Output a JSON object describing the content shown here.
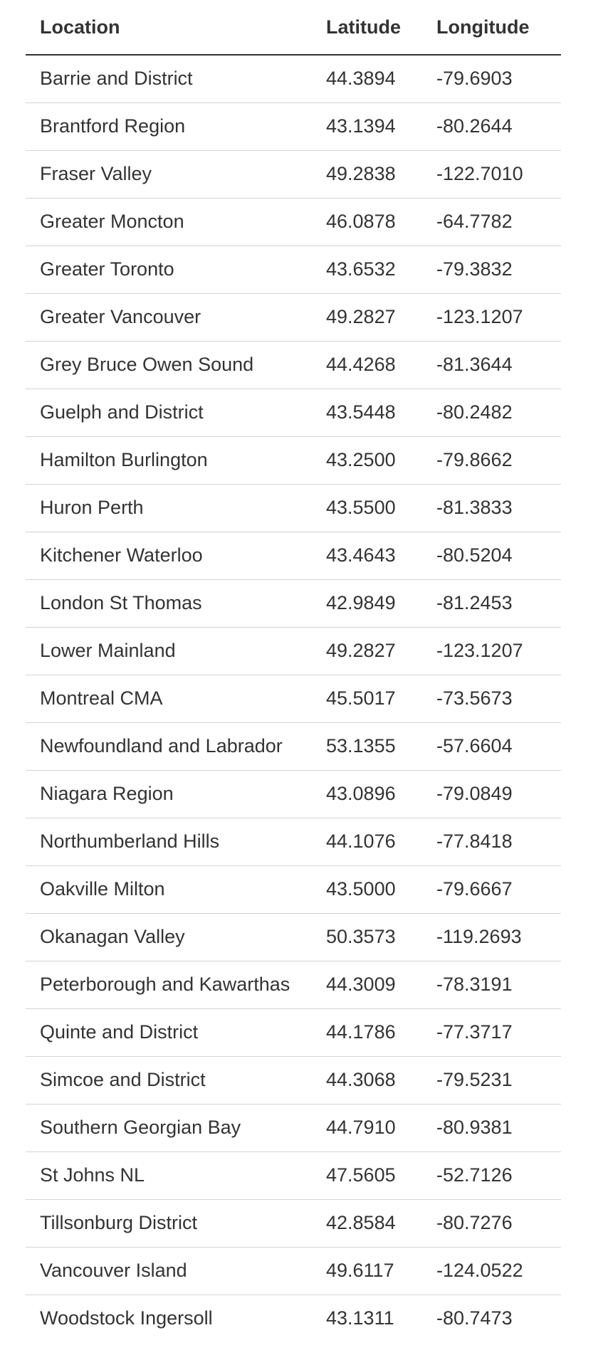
{
  "table": {
    "headers": {
      "location": "Location",
      "latitude": "Latitude",
      "longitude": "Longitude"
    },
    "rows": [
      {
        "location": "Barrie and District",
        "latitude": "44.3894",
        "longitude": "-79.6903"
      },
      {
        "location": "Brantford Region",
        "latitude": "43.1394",
        "longitude": "-80.2644"
      },
      {
        "location": "Fraser Valley",
        "latitude": "49.2838",
        "longitude": "-122.7010"
      },
      {
        "location": "Greater Moncton",
        "latitude": "46.0878",
        "longitude": "-64.7782"
      },
      {
        "location": "Greater Toronto",
        "latitude": "43.6532",
        "longitude": "-79.3832"
      },
      {
        "location": "Greater Vancouver",
        "latitude": "49.2827",
        "longitude": "-123.1207"
      },
      {
        "location": "Grey Bruce Owen Sound",
        "latitude": "44.4268",
        "longitude": "-81.3644"
      },
      {
        "location": "Guelph and District",
        "latitude": "43.5448",
        "longitude": "-80.2482"
      },
      {
        "location": "Hamilton Burlington",
        "latitude": "43.2500",
        "longitude": "-79.8662"
      },
      {
        "location": "Huron Perth",
        "latitude": "43.5500",
        "longitude": "-81.3833"
      },
      {
        "location": "Kitchener Waterloo",
        "latitude": "43.4643",
        "longitude": "-80.5204"
      },
      {
        "location": "London St Thomas",
        "latitude": "42.9849",
        "longitude": "-81.2453"
      },
      {
        "location": "Lower Mainland",
        "latitude": "49.2827",
        "longitude": "-123.1207"
      },
      {
        "location": "Montreal CMA",
        "latitude": "45.5017",
        "longitude": "-73.5673"
      },
      {
        "location": "Newfoundland and Labrador",
        "latitude": "53.1355",
        "longitude": "-57.6604"
      },
      {
        "location": "Niagara Region",
        "latitude": "43.0896",
        "longitude": "-79.0849"
      },
      {
        "location": "Northumberland Hills",
        "latitude": "44.1076",
        "longitude": "-77.8418"
      },
      {
        "location": "Oakville Milton",
        "latitude": "43.5000",
        "longitude": "-79.6667"
      },
      {
        "location": "Okanagan Valley",
        "latitude": "50.3573",
        "longitude": "-119.2693"
      },
      {
        "location": "Peterborough and Kawarthas",
        "latitude": "44.3009",
        "longitude": "-78.3191"
      },
      {
        "location": "Quinte and District",
        "latitude": "44.1786",
        "longitude": "-77.3717"
      },
      {
        "location": "Simcoe and District",
        "latitude": "44.3068",
        "longitude": "-79.5231"
      },
      {
        "location": "Southern Georgian Bay",
        "latitude": "44.7910",
        "longitude": "-80.9381"
      },
      {
        "location": "St Johns NL",
        "latitude": "47.5605",
        "longitude": "-52.7126"
      },
      {
        "location": "Tillsonburg District",
        "latitude": "42.8584",
        "longitude": "-80.7276"
      },
      {
        "location": "Vancouver Island",
        "latitude": "49.6117",
        "longitude": "-124.0522"
      },
      {
        "location": "Woodstock Ingersoll",
        "latitude": "43.1311",
        "longitude": "-80.7473"
      }
    ]
  }
}
